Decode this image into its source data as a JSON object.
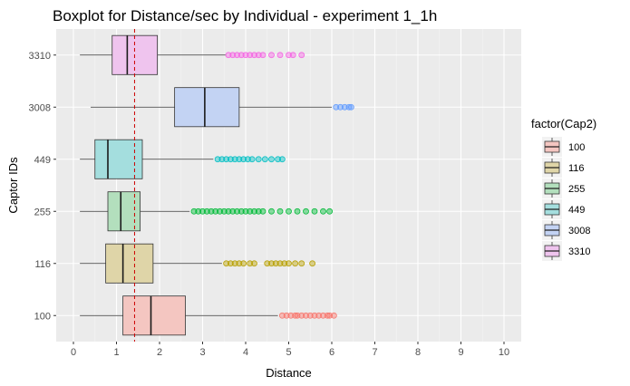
{
  "chart_data": {
    "type": "boxplot",
    "title": "Boxplot for Distance/sec by Individual - experiment 1_1h",
    "xlabel": "Distance",
    "ylabel": "Captor IDs",
    "xlim": [
      -0.4,
      10.4
    ],
    "xticks": [
      "0",
      "1",
      "2",
      "3",
      "4",
      "5",
      "6",
      "7",
      "8",
      "9",
      "10"
    ],
    "orientation": "horizontal",
    "grid": true,
    "legend": {
      "title": "factor(Cap2)",
      "placement": "right",
      "entries": [
        "100",
        "116",
        "255",
        "449",
        "3008",
        "3310"
      ]
    },
    "reference_line": {
      "x": 1.42,
      "style": "dashed",
      "color": "#cc0000"
    },
    "series": [
      {
        "category": "100",
        "fill": "#f4c6c1",
        "stroke": "#f8766d",
        "whisker_low": 0.15,
        "q1": 1.15,
        "median": 1.8,
        "q3": 2.6,
        "whisker_high": 4.75,
        "outliers": [
          4.85,
          4.95,
          5.05,
          5.15,
          5.2,
          5.3,
          5.4,
          5.5,
          5.6,
          5.7,
          5.8,
          5.9,
          5.95,
          6.05
        ]
      },
      {
        "category": "116",
        "fill": "#dfd5a8",
        "stroke": "#b79f00",
        "whisker_low": 0.15,
        "q1": 0.75,
        "median": 1.15,
        "q3": 1.85,
        "whisker_high": 3.45,
        "outliers": [
          3.55,
          3.65,
          3.75,
          3.85,
          3.95,
          4.1,
          4.2,
          4.5,
          4.6,
          4.7,
          4.8,
          4.9,
          5.0,
          5.15,
          5.3,
          5.55
        ]
      },
      {
        "category": "255",
        "fill": "#b3dfbd",
        "stroke": "#00ba38",
        "whisker_low": 0.15,
        "q1": 0.8,
        "median": 1.1,
        "q3": 1.55,
        "whisker_high": 2.7,
        "outliers": [
          2.8,
          2.9,
          3.0,
          3.1,
          3.2,
          3.3,
          3.4,
          3.5,
          3.6,
          3.7,
          3.8,
          3.9,
          4.0,
          4.1,
          4.2,
          4.3,
          4.4,
          4.6,
          4.8,
          5.0,
          5.2,
          5.4,
          5.6,
          5.8,
          5.95
        ]
      },
      {
        "category": "449",
        "fill": "#a4dede",
        "stroke": "#00bfc4",
        "whisker_low": 0.15,
        "q1": 0.5,
        "median": 0.8,
        "q3": 1.6,
        "whisker_high": 3.25,
        "outliers": [
          3.35,
          3.45,
          3.55,
          3.65,
          3.75,
          3.85,
          3.95,
          4.05,
          4.15,
          4.3,
          4.45,
          4.6,
          4.75,
          4.85
        ]
      },
      {
        "category": "3008",
        "fill": "#c3d3f3",
        "stroke": "#619cff",
        "whisker_low": 0.4,
        "q1": 2.35,
        "median": 3.05,
        "q3": 3.85,
        "whisker_high": 6.0,
        "outliers": [
          6.1,
          6.2,
          6.3,
          6.4,
          6.45
        ]
      },
      {
        "category": "3310",
        "fill": "#efc4ee",
        "stroke": "#f564e3",
        "whisker_low": 0.15,
        "q1": 0.9,
        "median": 1.25,
        "q3": 1.95,
        "whisker_high": 3.55,
        "outliers": [
          3.6,
          3.7,
          3.8,
          3.9,
          4.0,
          4.1,
          4.2,
          4.3,
          4.4,
          4.6,
          4.8,
          5.0,
          5.1,
          5.3
        ]
      }
    ]
  }
}
